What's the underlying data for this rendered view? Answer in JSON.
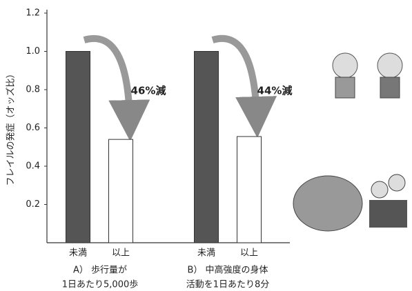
{
  "chart_data": {
    "type": "bar",
    "y_label": "フレイルの発症（オッズ比）",
    "categories": [
      "未満",
      "以上",
      "未満",
      "以上"
    ],
    "values": [
      1.0,
      0.54,
      1.0,
      0.555
    ],
    "bar_colors": [
      "#555555",
      "#ffffff",
      "#555555",
      "#ffffff"
    ],
    "ylim": [
      0,
      1.2
    ],
    "yticks": [
      0.2,
      0.4,
      0.6,
      0.8,
      {
        "value": 1,
        "label": "1.0"
      },
      1.2
    ],
    "groups": [
      {
        "lines": [
          "A） 歩行量が",
          "1日あたり5,000歩"
        ]
      },
      {
        "lines": [
          "B） 中高強度の身体",
          "活動を1日あたり8分"
        ]
      }
    ],
    "annotations": [
      "46%減",
      "44%減"
    ]
  }
}
